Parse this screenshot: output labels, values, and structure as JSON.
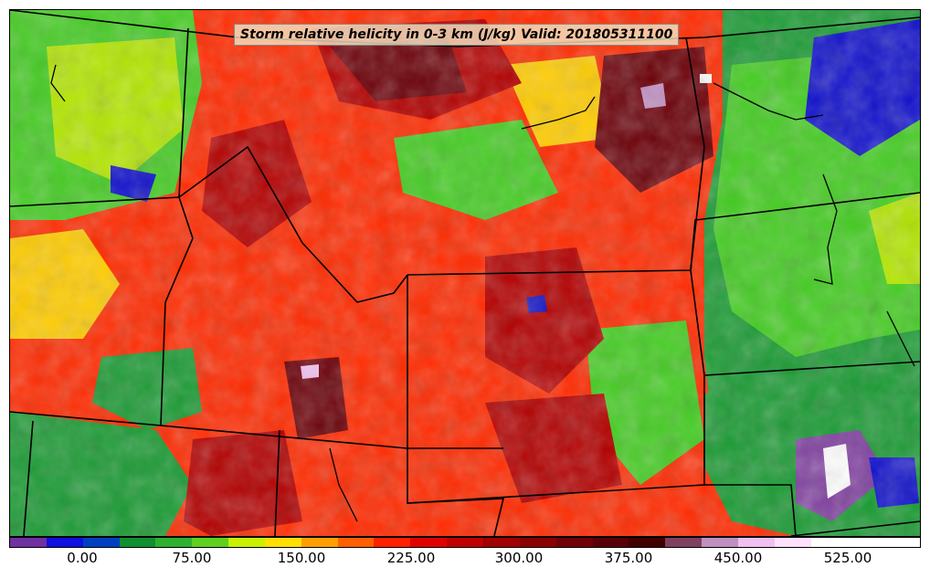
{
  "map": {
    "title": "Storm relative helicity in 0-3 km (J/kg) Valid: 201805311100",
    "palette": {
      "background_field": "#ff2a00",
      "dark_red": "#b30000",
      "very_dark": "#6b0008",
      "green": "#1a9a33",
      "light_green": "#44cc22",
      "yellow_green": "#b3e600",
      "yellow": "#ffcc00",
      "blue": "#1111cc",
      "purple": "#8040a0",
      "white": "#ffffff",
      "border": "#000000"
    }
  },
  "colorbar": {
    "colors": [
      "#7030a0",
      "#1010e0",
      "#0040c0",
      "#109030",
      "#30b030",
      "#60d020",
      "#c8f000",
      "#ffe000",
      "#ffa000",
      "#ff6000",
      "#ff2000",
      "#e00000",
      "#c00000",
      "#a00000",
      "#8a0000",
      "#700008",
      "#580008",
      "#400000",
      "#804060",
      "#c090c0",
      "#f0c0f0",
      "#ffe0ff",
      "#ffffff",
      "#ffffff",
      "#ffffff"
    ],
    "tick_labels": [
      "0.00",
      "75.00",
      "150.00",
      "225.00",
      "300.00",
      "375.00",
      "450.00",
      "525.00"
    ]
  }
}
